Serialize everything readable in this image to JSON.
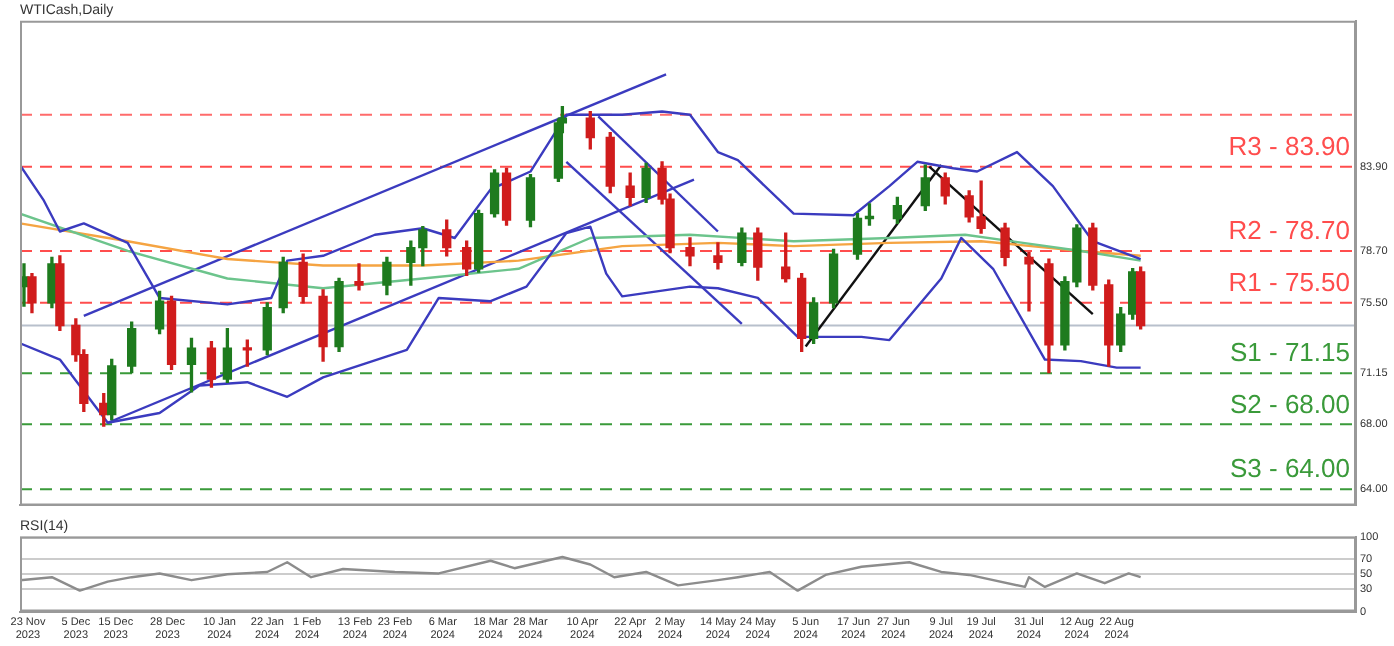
{
  "chart_data": [
    {
      "type": "candlestick",
      "title": "WTICash,Daily",
      "x": [
        "2023-11-22",
        "2023-11-24",
        "2023-11-29",
        "2023-12-01",
        "2023-12-05",
        "2023-12-07",
        "2023-12-12",
        "2023-12-14",
        "2023-12-19",
        "2023-12-26",
        "2023-12-29",
        "2024-01-03",
        "2024-01-08",
        "2024-01-12",
        "2024-01-17",
        "2024-01-22",
        "2024-01-26",
        "2024-01-31",
        "2024-02-05",
        "2024-02-09",
        "2024-02-14",
        "2024-02-21",
        "2024-02-27",
        "2024-03-01",
        "2024-03-07",
        "2024-03-12",
        "2024-03-15",
        "2024-03-19",
        "2024-03-22",
        "2024-03-28",
        "2024-04-04",
        "2024-04-05",
        "2024-04-12",
        "2024-04-17",
        "2024-04-22",
        "2024-04-26",
        "2024-04-30",
        "2024-05-02",
        "2024-05-07",
        "2024-05-14",
        "2024-05-20",
        "2024-05-24",
        "2024-05-31",
        "2024-06-04",
        "2024-06-07",
        "2024-06-12",
        "2024-06-18",
        "2024-06-21",
        "2024-06-28",
        "2024-07-05",
        "2024-07-10",
        "2024-07-16",
        "2024-07-19",
        "2024-07-25",
        "2024-07-31",
        "2024-08-05",
        "2024-08-09",
        "2024-08-12",
        "2024-08-16",
        "2024-08-20",
        "2024-08-23",
        "2024-08-26",
        "2024-08-28"
      ],
      "ohlc": [
        [
          76.5,
          77.9,
          75.3,
          77.1
        ],
        [
          77.1,
          77.3,
          74.9,
          75.5
        ],
        [
          75.5,
          78.3,
          75.2,
          77.9
        ],
        [
          77.9,
          78.4,
          73.8,
          74.1
        ],
        [
          74.1,
          74.5,
          71.9,
          72.3
        ],
        [
          72.3,
          72.6,
          68.8,
          69.3
        ],
        [
          69.3,
          69.9,
          67.9,
          68.6
        ],
        [
          68.6,
          72.0,
          68.3,
          71.6
        ],
        [
          71.6,
          74.3,
          71.2,
          73.9
        ],
        [
          73.9,
          76.2,
          73.6,
          75.6
        ],
        [
          75.6,
          75.9,
          71.4,
          71.7
        ],
        [
          71.7,
          73.3,
          70.0,
          72.7
        ],
        [
          72.7,
          73.1,
          70.3,
          70.8
        ],
        [
          70.8,
          73.9,
          70.6,
          72.7
        ],
        [
          72.7,
          73.2,
          71.6,
          72.6
        ],
        [
          72.6,
          75.5,
          72.3,
          75.2
        ],
        [
          75.2,
          78.3,
          74.9,
          78.0
        ],
        [
          78.0,
          78.5,
          75.5,
          75.9
        ],
        [
          75.9,
          76.3,
          71.9,
          72.8
        ],
        [
          72.8,
          77.0,
          72.5,
          76.8
        ],
        [
          76.8,
          77.9,
          76.3,
          76.6
        ],
        [
          76.6,
          78.3,
          76.0,
          78.0
        ],
        [
          78.0,
          79.3,
          76.6,
          78.9
        ],
        [
          78.9,
          80.2,
          77.8,
          80.0
        ],
        [
          80.0,
          80.6,
          78.4,
          78.9
        ],
        [
          78.9,
          79.3,
          77.2,
          77.6
        ],
        [
          77.6,
          81.2,
          77.4,
          81.0
        ],
        [
          81.0,
          83.7,
          80.8,
          83.5
        ],
        [
          83.5,
          83.8,
          80.3,
          80.6
        ],
        [
          80.6,
          83.4,
          80.2,
          83.2
        ],
        [
          83.2,
          86.8,
          83.0,
          86.6
        ],
        [
          86.6,
          87.6,
          86.0,
          86.9
        ],
        [
          86.9,
          87.3,
          85.0,
          85.7
        ],
        [
          85.7,
          86.0,
          82.3,
          82.7
        ],
        [
          82.7,
          83.5,
          81.5,
          82.0
        ],
        [
          82.0,
          84.1,
          81.7,
          83.8
        ],
        [
          83.8,
          84.2,
          81.6,
          81.9
        ],
        [
          81.9,
          82.2,
          78.6,
          78.9
        ],
        [
          78.9,
          79.5,
          77.8,
          78.4
        ],
        [
          78.4,
          79.2,
          77.6,
          78.0
        ],
        [
          78.0,
          80.1,
          77.8,
          79.8
        ],
        [
          79.8,
          80.1,
          76.9,
          77.7
        ],
        [
          77.7,
          79.8,
          76.8,
          77.0
        ],
        [
          77.0,
          77.3,
          72.5,
          73.3
        ],
        [
          73.3,
          75.8,
          73.0,
          75.5
        ],
        [
          75.5,
          78.8,
          75.2,
          78.5
        ],
        [
          78.5,
          81.0,
          78.2,
          80.7
        ],
        [
          80.7,
          81.6,
          80.3,
          80.7
        ],
        [
          80.7,
          82.0,
          80.4,
          81.5
        ],
        [
          81.5,
          84.0,
          81.2,
          83.2
        ],
        [
          83.2,
          83.5,
          81.6,
          82.1
        ],
        [
          82.1,
          82.4,
          80.5,
          80.8
        ],
        [
          80.8,
          83.0,
          79.8,
          80.1
        ],
        [
          80.1,
          80.4,
          77.8,
          78.3
        ],
        [
          78.3,
          78.6,
          75.0,
          77.9
        ],
        [
          77.9,
          78.2,
          71.2,
          72.9
        ],
        [
          72.9,
          77.1,
          72.6,
          76.8
        ],
        [
          76.8,
          80.3,
          76.5,
          80.1
        ],
        [
          80.1,
          80.4,
          76.3,
          76.6
        ],
        [
          76.6,
          76.9,
          71.6,
          72.9
        ],
        [
          72.9,
          75.2,
          72.5,
          74.8
        ],
        [
          74.8,
          77.6,
          74.5,
          77.4
        ],
        [
          77.4,
          77.7,
          73.9,
          74.1
        ]
      ],
      "colors": [
        "#1e7b1e",
        "#d01c1c",
        "#1e7b1e",
        "#d01c1c",
        "#d01c1c",
        "#d01c1c",
        "#d01c1c",
        "#1e7b1e",
        "#1e7b1e",
        "#1e7b1e",
        "#d01c1c",
        "#1e7b1e",
        "#d01c1c",
        "#1e7b1e",
        "#d01c1c",
        "#1e7b1e",
        "#1e7b1e",
        "#d01c1c",
        "#d01c1c",
        "#1e7b1e",
        "#d01c1c",
        "#1e7b1e",
        "#1e7b1e",
        "#1e7b1e",
        "#d01c1c",
        "#d01c1c",
        "#1e7b1e",
        "#1e7b1e",
        "#d01c1c",
        "#1e7b1e",
        "#1e7b1e",
        "#1e7b1e",
        "#d01c1c",
        "#d01c1c",
        "#d01c1c",
        "#1e7b1e",
        "#d01c1c",
        "#d01c1c",
        "#d01c1c",
        "#d01c1c",
        "#1e7b1e",
        "#d01c1c",
        "#d01c1c",
        "#d01c1c",
        "#1e7b1e",
        "#1e7b1e",
        "#1e7b1e",
        "#1e7b1e",
        "#1e7b1e",
        "#1e7b1e",
        "#d01c1c",
        "#d01c1c",
        "#d01c1c",
        "#d01c1c",
        "#d01c1c",
        "#d01c1c",
        "#1e7b1e",
        "#1e7b1e",
        "#d01c1c",
        "#d01c1c",
        "#1e7b1e",
        "#1e7b1e",
        "#d01c1c"
      ],
      "xlim": [
        "2023-11-21",
        "2024-10-21"
      ],
      "ylim": [
        63.0,
        92.9
      ],
      "yticks": [
        {
          "value": 64,
          "label": "64.00"
        },
        {
          "value": 68,
          "label": "68.00"
        },
        {
          "value": 71.15,
          "label": "71.15"
        },
        {
          "value": 75.5,
          "label": "75.50"
        },
        {
          "value": 78.7,
          "label": "78.70"
        },
        {
          "value": 83.9,
          "label": "83.90"
        }
      ],
      "tick_labels": "y",
      "series": [
        {
          "type": "line",
          "color": "#3b3bbf",
          "x": [
            "2023-11-21",
            "2023-11-27",
            "2023-12-01",
            "2023-12-07",
            "2023-12-18",
            "2023-12-26",
            "2024-01-12",
            "2024-01-23",
            "2024-01-27",
            "2024-02-05",
            "2024-02-18",
            "2024-03-01",
            "2024-03-09",
            "2024-03-18",
            "2024-03-28",
            "2024-04-06",
            "2024-04-20",
            "2024-04-30",
            "2024-05-07",
            "2024-05-14",
            "2024-05-19",
            "2024-06-02",
            "2024-06-17",
            "2024-06-26",
            "2024-07-03",
            "2024-07-12",
            "2024-07-18",
            "2024-07-28",
            "2024-08-06",
            "2024-08-16",
            "2024-08-28"
          ],
          "values": [
            84.0,
            81.8,
            79.9,
            80.4,
            79.2,
            75.8,
            75.4,
            75.8,
            78.1,
            78.4,
            79.7,
            80.1,
            79.5,
            82.5,
            83.6,
            87.1,
            87.1,
            87.3,
            87.1,
            84.8,
            84.3,
            81.0,
            80.9,
            82.7,
            84.2,
            83.8,
            83.6,
            84.8,
            82.7,
            79.3,
            78.2
          ]
        },
        {
          "type": "line",
          "color": "#3b3bbf",
          "x": [
            "2023-11-21",
            "2023-12-01",
            "2023-12-13",
            "2023-12-26",
            "2024-01-05",
            "2024-01-17",
            "2024-01-27",
            "2024-02-05",
            "2024-02-26",
            "2024-03-05",
            "2024-03-18",
            "2024-03-27",
            "2024-04-06",
            "2024-04-12",
            "2024-04-16",
            "2024-04-20",
            "2024-05-07",
            "2024-05-14",
            "2024-05-24",
            "2024-06-03",
            "2024-06-19",
            "2024-06-26",
            "2024-07-09",
            "2024-07-14",
            "2024-07-22",
            "2024-08-04",
            "2024-08-13",
            "2024-08-22",
            "2024-08-28"
          ],
          "values": [
            73.0,
            72.0,
            68.1,
            68.7,
            70.4,
            70.6,
            69.7,
            70.9,
            72.6,
            75.8,
            75.6,
            76.5,
            79.8,
            80.2,
            77.3,
            75.9,
            76.5,
            76.4,
            75.8,
            73.4,
            73.4,
            73.2,
            77.0,
            79.5,
            77.6,
            72.0,
            71.9,
            71.5,
            71.5
          ]
        },
        {
          "type": "line",
          "color": "#6cc48c",
          "x": [
            "2023-11-21",
            "2023-12-18",
            "2024-01-12",
            "2024-02-05",
            "2024-03-01",
            "2024-03-25",
            "2024-04-12",
            "2024-05-07",
            "2024-06-02",
            "2024-06-26",
            "2024-07-15",
            "2024-08-13",
            "2024-08-28"
          ],
          "values": [
            81.0,
            78.7,
            77.0,
            76.4,
            77.0,
            77.6,
            79.5,
            79.7,
            79.3,
            79.5,
            79.7,
            78.7,
            78.1
          ]
        },
        {
          "type": "line",
          "color": "#f5a442",
          "x": [
            "2023-11-21",
            "2023-12-18",
            "2024-01-12",
            "2024-02-05",
            "2024-03-01",
            "2024-03-25",
            "2024-04-20",
            "2024-05-14",
            "2024-06-02",
            "2024-06-26",
            "2024-07-19",
            "2024-08-13",
            "2024-08-28"
          ],
          "values": [
            80.4,
            79.3,
            78.2,
            77.8,
            77.8,
            78.1,
            79.0,
            79.2,
            79.0,
            79.2,
            79.3,
            78.7,
            78.4
          ]
        },
        {
          "type": "line",
          "color": "#3b3bbf",
          "x": [
            "2023-12-07",
            "2024-05-01"
          ],
          "values": [
            74.7,
            89.6
          ]
        },
        {
          "type": "line",
          "color": "#3b3bbf",
          "x": [
            "2023-12-13",
            "2024-05-08"
          ],
          "values": [
            68.1,
            83.1
          ]
        },
        {
          "type": "line",
          "color": "#3b3bbf",
          "x": [
            "2024-04-14",
            "2024-05-14"
          ],
          "values": [
            87.0,
            79.9
          ]
        },
        {
          "type": "line",
          "color": "#3b3bbf",
          "x": [
            "2024-04-06",
            "2024-05-20"
          ],
          "values": [
            84.2,
            74.2
          ]
        },
        {
          "type": "line",
          "color": "#111111",
          "x": [
            "2024-06-05",
            "2024-07-09"
          ],
          "values": [
            72.8,
            84.0
          ]
        },
        {
          "type": "line",
          "color": "#111111",
          "x": [
            "2024-07-06",
            "2024-08-16"
          ],
          "values": [
            83.9,
            74.8
          ]
        }
      ],
      "ref_lines": [
        {
          "axis": "y",
          "value": 87.1,
          "label": null,
          "color": "#ff6b6b",
          "line_style": "dashed"
        },
        {
          "axis": "y",
          "value": 83.9,
          "label": "R3 - 83.90",
          "color": "#ff4d4d",
          "line_style": "dashed"
        },
        {
          "axis": "y",
          "value": 78.7,
          "label": "R2 - 78.70",
          "color": "#ff4d4d",
          "line_style": "dashed"
        },
        {
          "axis": "y",
          "value": 75.5,
          "label": "R1 - 75.50",
          "color": "#ff4d4d",
          "line_style": "dashed"
        },
        {
          "axis": "y",
          "value": 74.1,
          "label": null,
          "color": "#b8c0cc",
          "line_style": "solid"
        },
        {
          "axis": "y",
          "value": 71.15,
          "label": "S1 - 71.15",
          "color": "#3a9a3a",
          "line_style": "dashed"
        },
        {
          "axis": "y",
          "value": 68.0,
          "label": "S2 - 68.00",
          "color": "#3a9a3a",
          "line_style": "dashed"
        },
        {
          "axis": "y",
          "value": 64.0,
          "label": "S3 - 64.00",
          "color": "#3a9a3a",
          "line_style": "dashed"
        }
      ]
    },
    {
      "type": "line",
      "title": "RSI(14)",
      "color": "#8c8c8c",
      "x": [
        "2023-11-21",
        "2023-11-29",
        "2023-12-06",
        "2023-12-13",
        "2023-12-19",
        "2023-12-26",
        "2024-01-03",
        "2024-01-12",
        "2024-01-22",
        "2024-01-27",
        "2024-02-02",
        "2024-02-10",
        "2024-02-23",
        "2024-03-05",
        "2024-03-18",
        "2024-03-24",
        "2024-04-05",
        "2024-04-12",
        "2024-04-18",
        "2024-04-26",
        "2024-05-04",
        "2024-05-14",
        "2024-05-19",
        "2024-05-27",
        "2024-06-03",
        "2024-06-10",
        "2024-06-19",
        "2024-07-01",
        "2024-07-09",
        "2024-07-16",
        "2024-07-30",
        "2024-07-31",
        "2024-08-04",
        "2024-08-12",
        "2024-08-19",
        "2024-08-25",
        "2024-08-28"
      ],
      "values": [
        42,
        46,
        28,
        40,
        46,
        51,
        42,
        50,
        53,
        66,
        46,
        57,
        53,
        51,
        68,
        58,
        73,
        63,
        46,
        53,
        35,
        42,
        46,
        53,
        28,
        49,
        60,
        66,
        53,
        49,
        33,
        46,
        33,
        51,
        38,
        51,
        46
      ],
      "xlim": [
        "2023-11-21",
        "2024-10-21"
      ],
      "xticks": [
        {
          "value": "2023-11-23",
          "label": "23 Nov 2023"
        },
        {
          "value": "2023-12-05",
          "label": "5 Dec 2023"
        },
        {
          "value": "2023-12-15",
          "label": "15 Dec 2023"
        },
        {
          "value": "2023-12-28",
          "label": "28 Dec 2023"
        },
        {
          "value": "2024-01-10",
          "label": "10 Jan 2024"
        },
        {
          "value": "2024-01-22",
          "label": "22 Jan 2024"
        },
        {
          "value": "2024-02-01",
          "label": "1 Feb 2024"
        },
        {
          "value": "2024-02-13",
          "label": "13 Feb 2024"
        },
        {
          "value": "2024-02-23",
          "label": "23 Feb 2024"
        },
        {
          "value": "2024-03-06",
          "label": "6 Mar 2024"
        },
        {
          "value": "2024-03-18",
          "label": "18 Mar 2024"
        },
        {
          "value": "2024-03-28",
          "label": "28 Mar 2024"
        },
        {
          "value": "2024-04-10",
          "label": "10 Apr 2024"
        },
        {
          "value": "2024-04-22",
          "label": "22 Apr 2024"
        },
        {
          "value": "2024-05-02",
          "label": "2 May 2024"
        },
        {
          "value": "2024-05-14",
          "label": "14 May 2024"
        },
        {
          "value": "2024-05-24",
          "label": "24 May 2024"
        },
        {
          "value": "2024-06-05",
          "label": "5 Jun 2024"
        },
        {
          "value": "2024-06-17",
          "label": "17 Jun 2024"
        },
        {
          "value": "2024-06-27",
          "label": "27 Jun 2024"
        },
        {
          "value": "2024-07-09",
          "label": "9 Jul 2024"
        },
        {
          "value": "2024-07-19",
          "label": "19 Jul 2024"
        },
        {
          "value": "2024-07-31",
          "label": "31 Jul 2024"
        },
        {
          "value": "2024-08-12",
          "label": "12 Aug 2024"
        },
        {
          "value": "2024-08-22",
          "label": "22 Aug 2024"
        }
      ],
      "ylim": [
        0,
        100
      ],
      "yticks": [
        0,
        30,
        50,
        70,
        100
      ],
      "grid": "y"
    }
  ]
}
